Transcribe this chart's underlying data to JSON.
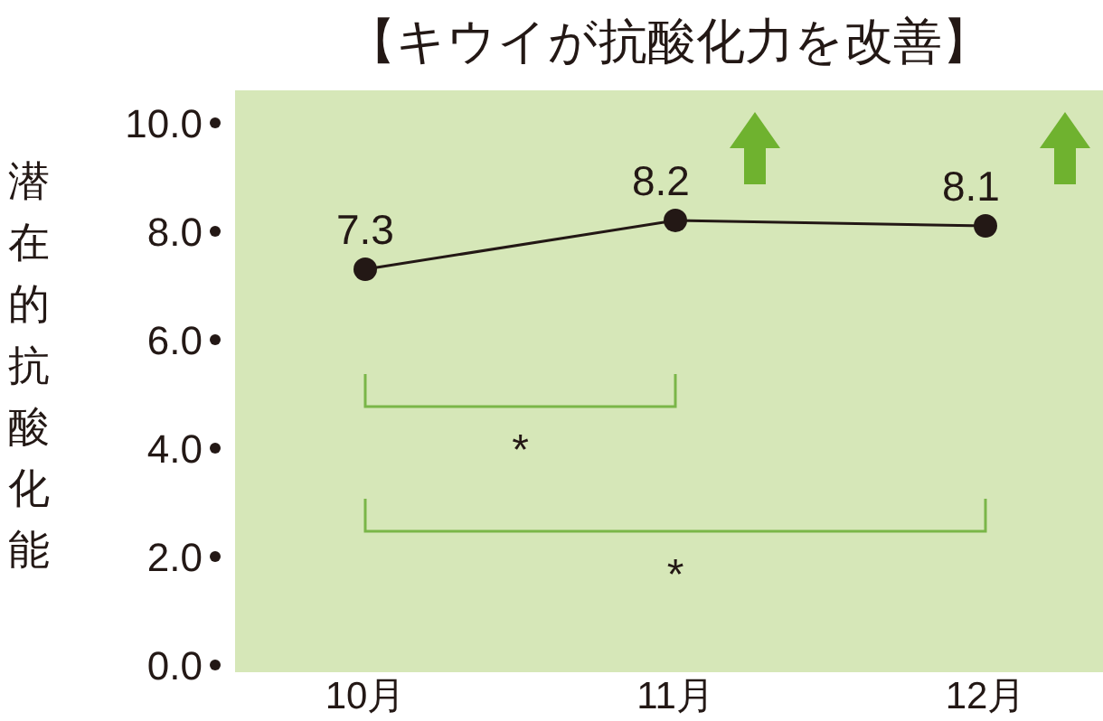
{
  "chart_data": {
    "type": "line",
    "title": "【キウイが抗酸化力を改善】",
    "ylabel": "潜在的抗酸化能",
    "categories": [
      "10月",
      "11月",
      "12月"
    ],
    "values": [
      7.3,
      8.2,
      8.1
    ],
    "color": "#231815",
    "marker": "circle",
    "data_labels": true,
    "ylim": [
      0,
      10.6
    ],
    "yticks": [
      {
        "value": 0,
        "label": "0.0"
      },
      {
        "value": 2,
        "label": "2.0"
      },
      {
        "value": 4,
        "label": "4.0"
      },
      {
        "value": 6,
        "label": "6.0"
      },
      {
        "value": 8,
        "label": "8.0"
      },
      {
        "value": 10,
        "label": "10.0"
      }
    ],
    "annotations": [
      "*",
      "*"
    ]
  }
}
